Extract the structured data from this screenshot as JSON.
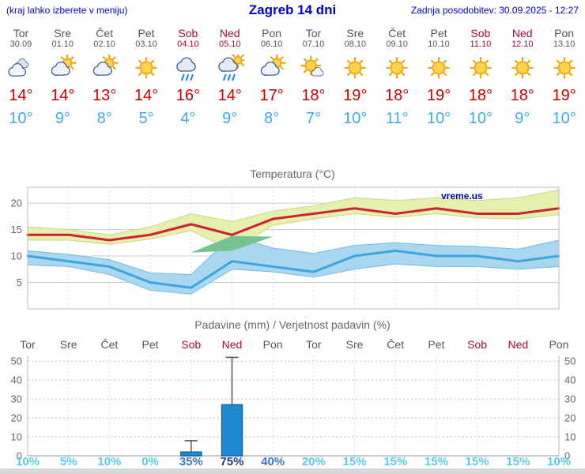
{
  "header": {
    "note": "(kraj lahko izberete v meniju)",
    "title": "Zagreb 14 dni",
    "updated": "Zadnja posodobitev: 30.09.2025 - 12:27"
  },
  "watermark": "vreme.us",
  "days": [
    {
      "name": "Tor",
      "date": "30.09",
      "weekend": false,
      "icon": "cloudy",
      "tmax": "14°",
      "tmin": "10°"
    },
    {
      "name": "Sre",
      "date": "01.10",
      "weekend": false,
      "icon": "partly-cloudy",
      "tmax": "14°",
      "tmin": "9°"
    },
    {
      "name": "Čet",
      "date": "02.10",
      "weekend": false,
      "icon": "partly-cloudy",
      "tmax": "13°",
      "tmin": "8°"
    },
    {
      "name": "Pet",
      "date": "03.10",
      "weekend": false,
      "icon": "sunny",
      "tmax": "14°",
      "tmin": "5°"
    },
    {
      "name": "Sob",
      "date": "04.10",
      "weekend": true,
      "icon": "rain",
      "tmax": "16°",
      "tmin": "4°"
    },
    {
      "name": "Ned",
      "date": "05.10",
      "weekend": true,
      "icon": "rain-sun",
      "tmax": "14°",
      "tmin": "9°"
    },
    {
      "name": "Pon",
      "date": "06.10",
      "weekend": false,
      "icon": "partly-cloudy",
      "tmax": "17°",
      "tmin": "8°"
    },
    {
      "name": "Tor",
      "date": "07.10",
      "weekend": false,
      "icon": "mostly-sunny",
      "tmax": "18°",
      "tmin": "7°"
    },
    {
      "name": "Sre",
      "date": "08.10",
      "weekend": false,
      "icon": "sunny",
      "tmax": "19°",
      "tmin": "10°"
    },
    {
      "name": "Čet",
      "date": "09.10",
      "weekend": false,
      "icon": "sunny",
      "tmax": "18°",
      "tmin": "11°"
    },
    {
      "name": "Pet",
      "date": "10.10",
      "weekend": false,
      "icon": "sunny",
      "tmax": "19°",
      "tmin": "10°"
    },
    {
      "name": "Sob",
      "date": "11.10",
      "weekend": true,
      "icon": "sunny",
      "tmax": "18°",
      "tmin": "10°"
    },
    {
      "name": "Ned",
      "date": "12.10",
      "weekend": true,
      "icon": "sunny",
      "tmax": "18°",
      "tmin": "9°"
    },
    {
      "name": "Pon",
      "date": "13.10",
      "weekend": false,
      "icon": "sunny",
      "tmax": "19°",
      "tmin": "10°"
    }
  ],
  "chart_data": [
    {
      "type": "line",
      "title": "Temperatura (°C)",
      "x_days": [
        "Tor 30.09",
        "Sre 01.10",
        "Čet 02.10",
        "Pet 03.10",
        "Sob 04.10",
        "Ned 05.10",
        "Pon 06.10",
        "Tor 07.10",
        "Sre 08.10",
        "Čet 09.10",
        "Pet 10.10",
        "Sob 11.10",
        "Ned 12.10",
        "Pon 13.10"
      ],
      "ylim": [
        0,
        23
      ],
      "yticks": [
        5,
        10,
        15,
        20
      ],
      "series": [
        {
          "name": "max_temp",
          "color": "#cc2233",
          "values": [
            14,
            14,
            13,
            14,
            16,
            14,
            17,
            18,
            19,
            18,
            19,
            18,
            18,
            19
          ]
        },
        {
          "name": "min_temp",
          "color": "#3fa3dc",
          "values": [
            10,
            9,
            8,
            5,
            4,
            9,
            8,
            7,
            10,
            11,
            10,
            10,
            9,
            10
          ]
        },
        {
          "name": "max_band_upper",
          "color": "#e7efad",
          "values": [
            15.5,
            15,
            14,
            15.5,
            18,
            16.5,
            18.5,
            19.5,
            21,
            20.5,
            21,
            20.5,
            21,
            22.5
          ]
        },
        {
          "name": "max_band_lower",
          "color": "#e7efad",
          "values": [
            13,
            13,
            12.2,
            13.2,
            14.8,
            11,
            15.8,
            17,
            18,
            17.3,
            18,
            17.2,
            17,
            17.8
          ]
        },
        {
          "name": "min_band_upper",
          "color": "#a9d7ef",
          "values": [
            11,
            10.3,
            9.3,
            6.8,
            6.5,
            13.8,
            11.5,
            10.5,
            12,
            12.5,
            12,
            11.8,
            11.3,
            13
          ]
        },
        {
          "name": "min_band_lower",
          "color": "#a9d7ef",
          "values": [
            8.3,
            8,
            6.5,
            3.5,
            2.8,
            7.5,
            7,
            6,
            7.5,
            8.5,
            8,
            8,
            7.5,
            8
          ]
        }
      ],
      "overlap_color": "#74c493",
      "grid": true
    },
    {
      "type": "bar",
      "title": "Padavine (mm) / Verjetnost padavin (%)",
      "categories": [
        "Tor",
        "Sre",
        "Čet",
        "Pet",
        "Sob",
        "Ned",
        "Pon",
        "Tor",
        "Sre",
        "Čet",
        "Pet",
        "Sob",
        "Ned",
        "Pon"
      ],
      "weekend_flags": [
        false,
        false,
        false,
        false,
        true,
        true,
        false,
        false,
        false,
        false,
        false,
        true,
        true,
        false
      ],
      "values_mm": [
        0,
        0,
        0,
        0,
        2,
        27,
        0,
        0,
        0,
        0,
        0,
        0,
        0,
        0
      ],
      "whisker_max_mm": [
        0,
        0,
        0,
        0,
        8,
        52,
        0,
        0,
        0,
        0,
        0,
        0,
        0,
        0
      ],
      "probabilities": [
        "10%",
        "5%",
        "10%",
        "0%",
        "35%",
        "75%",
        "40%",
        "20%",
        "15%",
        "15%",
        "15%",
        "15%",
        "15%",
        "10%"
      ],
      "prob_colors": [
        "#5ac8f0",
        "#5ac8f0",
        "#5ac8f0",
        "#5ac8f0",
        "#3b76c4",
        "#1f3a8f",
        "#3b76c4",
        "#5ac8f0",
        "#5ac8f0",
        "#5ac8f0",
        "#5ac8f0",
        "#5ac8f0",
        "#5ac8f0",
        "#5ac8f0"
      ],
      "ylim": [
        0,
        53
      ],
      "yticks": [
        0,
        10,
        20,
        30,
        40,
        50
      ],
      "bar_color": "#1f8ad2",
      "bar_border": "#15659e",
      "grid": true
    }
  ]
}
